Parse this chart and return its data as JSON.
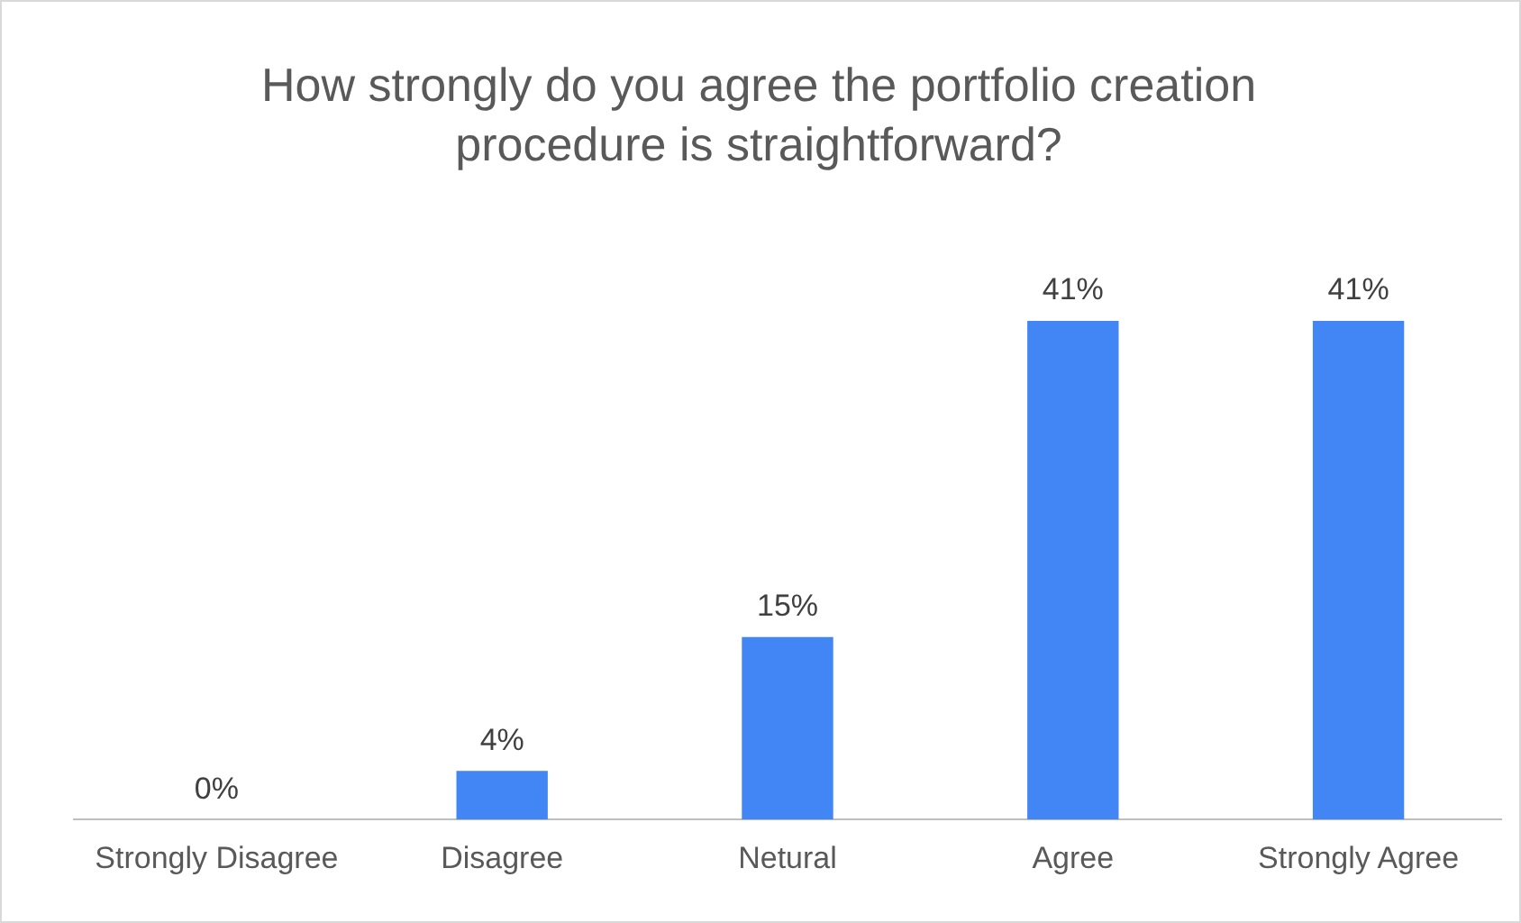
{
  "chart_data": {
    "type": "bar",
    "title": "How strongly do you agree the portfolio creation procedure is straightforward?",
    "categories": [
      "Strongly Disagree",
      "Disagree",
      "Netural",
      "Agree",
      "Strongly Agree"
    ],
    "values": [
      0,
      4,
      15,
      41,
      41
    ],
    "value_labels": [
      "0%",
      "4%",
      "15%",
      "41%",
      "41%"
    ],
    "color": "#4285f4",
    "grid": false,
    "legend": false
  }
}
